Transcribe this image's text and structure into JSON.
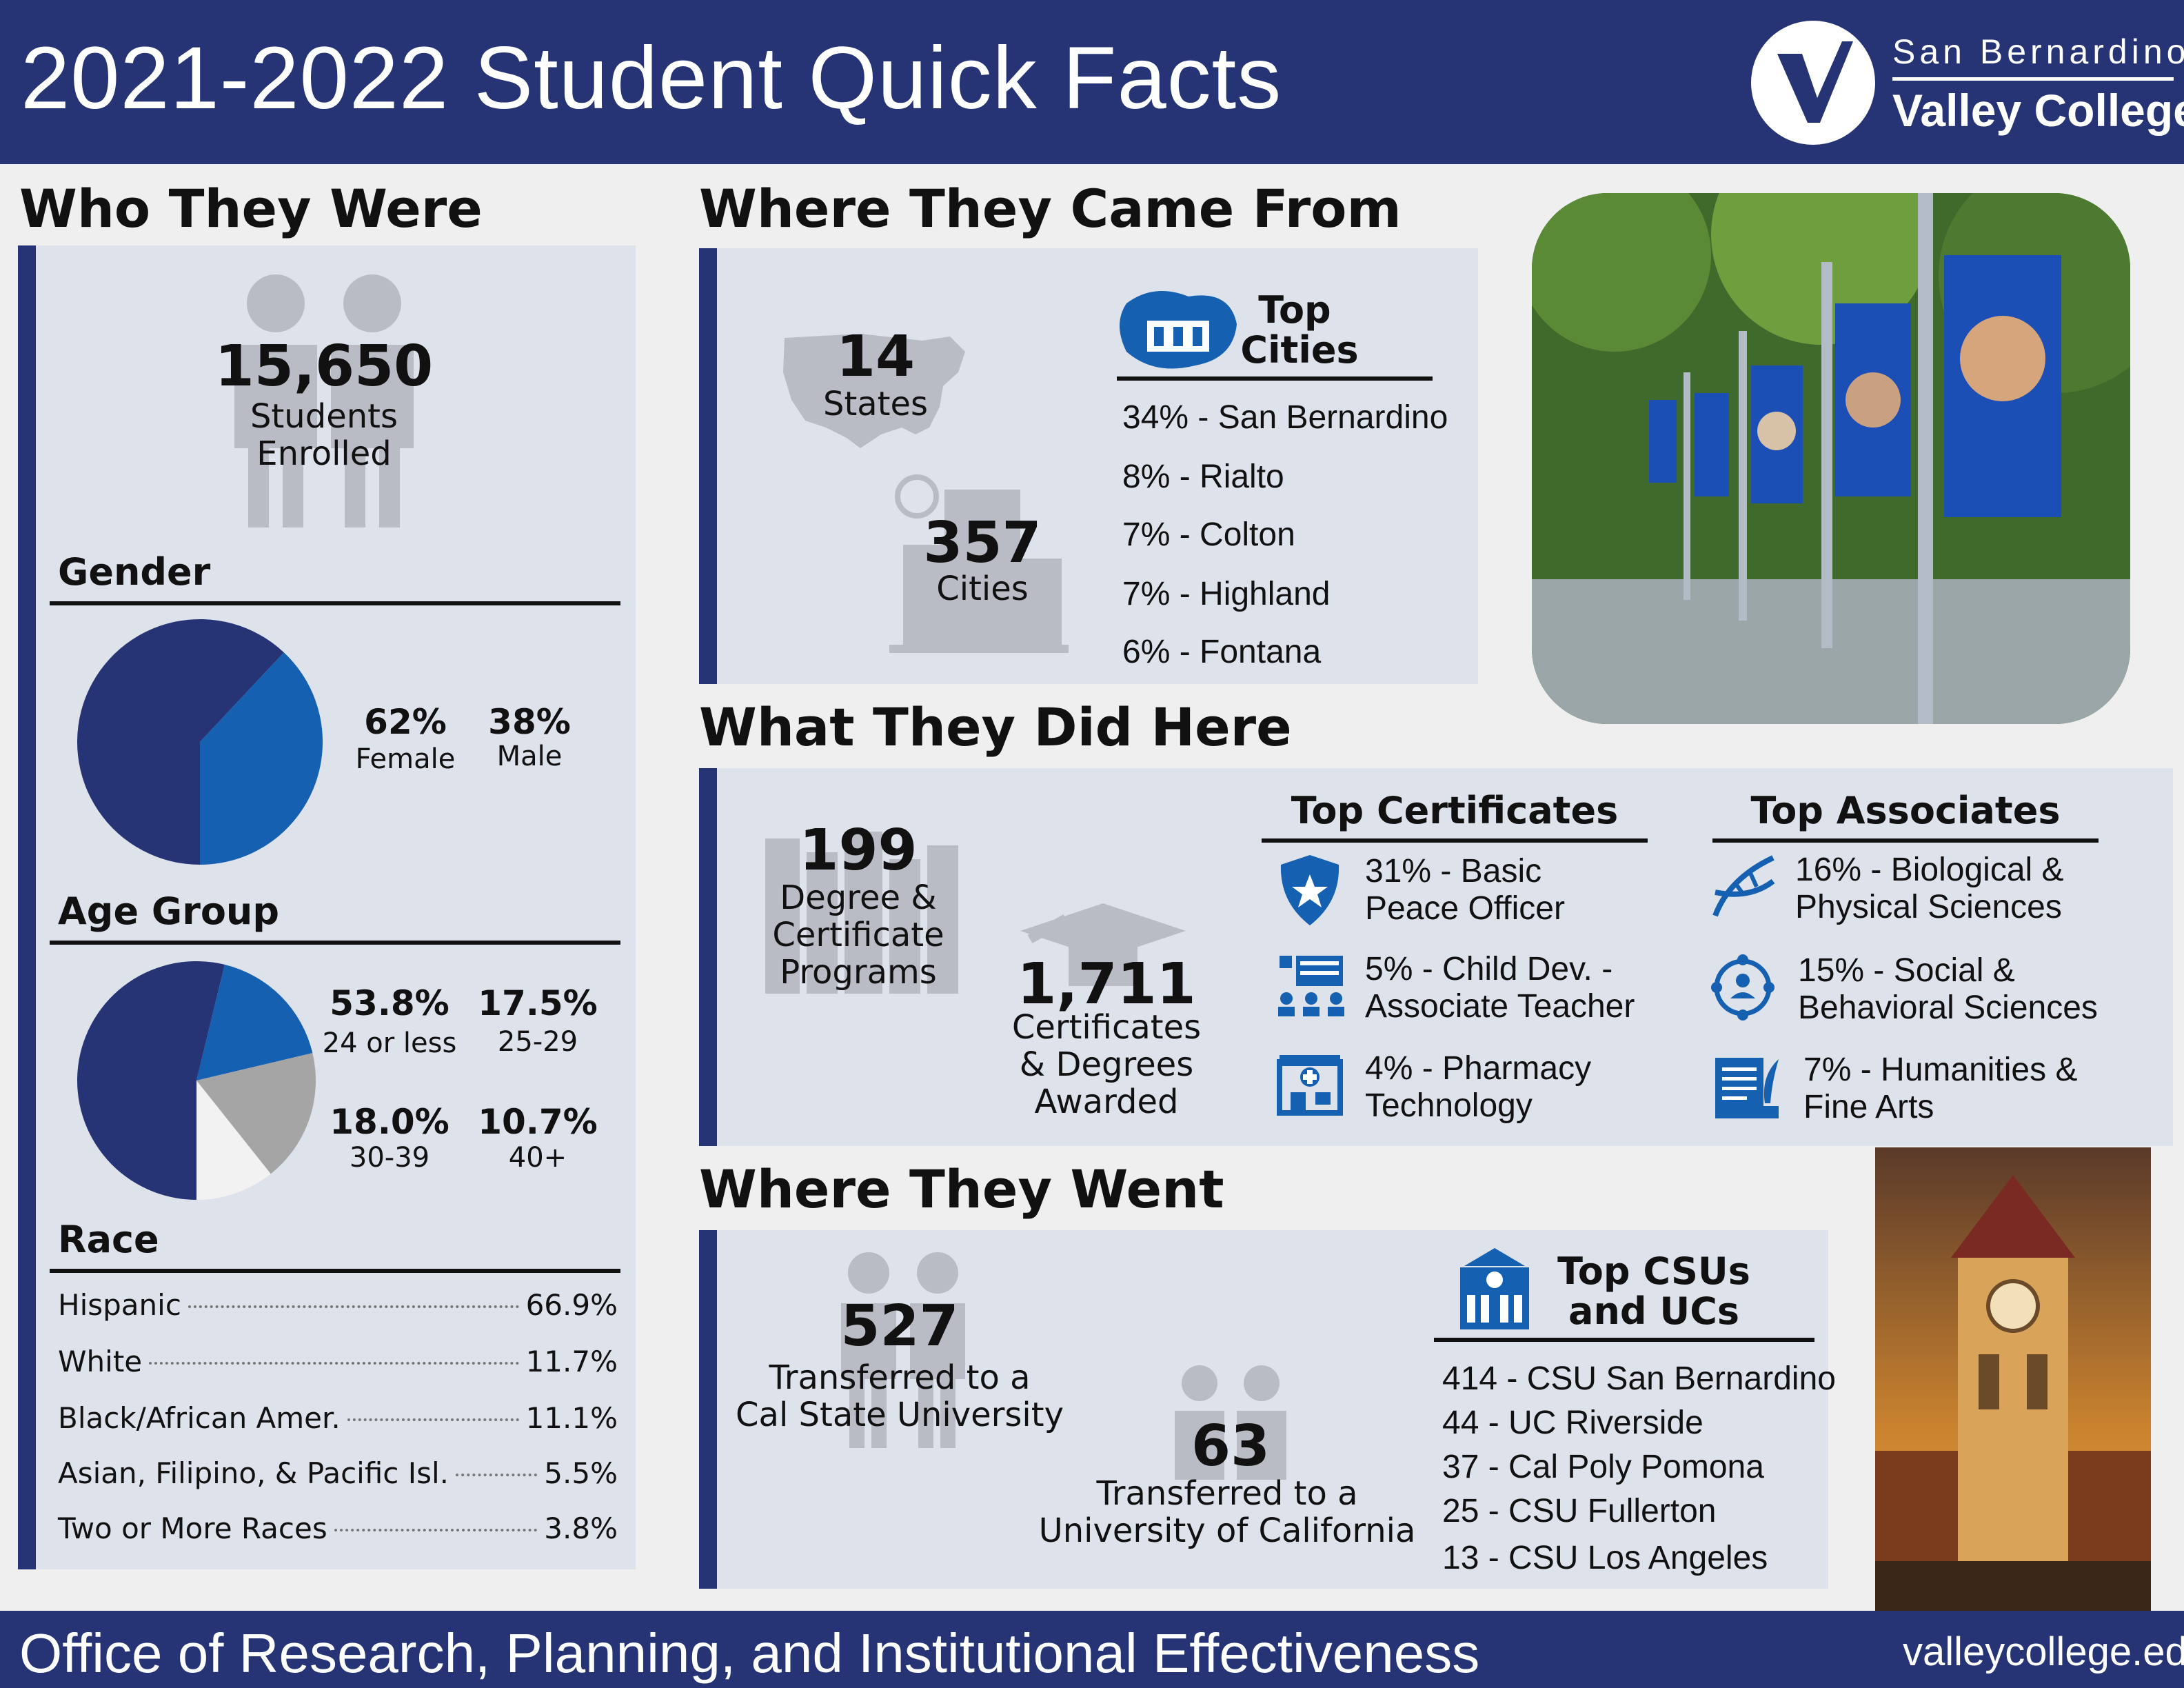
{
  "header": {
    "title": "2021-2022 Student Quick Facts",
    "logo_line1": "San Bernardino",
    "logo_line2": "Valley College"
  },
  "who": {
    "title": "Who They Were",
    "enrolled_value": "15,650",
    "enrolled_label1": "Students",
    "enrolled_label2": "Enrolled",
    "gender": {
      "title": "Gender",
      "female_pct": "62%",
      "female_label": "Female",
      "male_pct": "38%",
      "male_label": "Male"
    },
    "age": {
      "title": "Age Group",
      "g1_pct": "53.8%",
      "g1_label": "24 or less",
      "g2_pct": "17.5%",
      "g2_label": "25-29",
      "g3_pct": "18.0%",
      "g3_label": "30-39",
      "g4_pct": "10.7%",
      "g4_label": "40+"
    },
    "race": {
      "title": "Race",
      "rows": [
        {
          "label": "Hispanic",
          "value": "66.9%"
        },
        {
          "label": "White",
          "value": "11.7%"
        },
        {
          "label": "Black/African Amer.",
          "value": "11.1%"
        },
        {
          "label": "Asian, Filipino, & Pacific Isl.",
          "value": "5.5%"
        },
        {
          "label": "Two or More Races",
          "value": "3.8%"
        }
      ]
    }
  },
  "from": {
    "title": "Where They Came From",
    "states_value": "14",
    "states_label": "States",
    "cities_value": "357",
    "cities_label": "Cities",
    "top_cities_title1": "Top",
    "top_cities_title2": "Cities",
    "cities": [
      "34% - San Bernardino",
      "8% - Rialto",
      "7% - Colton",
      "7% - Highland",
      "6% - Fontana"
    ]
  },
  "did": {
    "title": "What They Did Here",
    "programs_value": "199",
    "programs_label1": "Degree &",
    "programs_label2": "Certificate",
    "programs_label3": "Programs",
    "awards_value": "1,711",
    "awards_label1": "Certificates",
    "awards_label2": "& Degrees",
    "awards_label3": "Awarded",
    "certs_title": "Top Certificates",
    "certs": [
      {
        "line1": "31% - Basic",
        "line2": "Peace Officer",
        "icon": "police-badge-icon"
      },
      {
        "line1": "5% - Child Dev. -",
        "line2": "Associate Teacher",
        "icon": "classroom-icon"
      },
      {
        "line1": "4% - Pharmacy",
        "line2": "Technology",
        "icon": "pharmacy-icon"
      }
    ],
    "assoc_title": "Top Associates",
    "assocs": [
      {
        "line1": "16% - Biological &",
        "line2": "Physical Sciences",
        "icon": "dna-icon"
      },
      {
        "line1": "15% - Social &",
        "line2": "Behavioral Sciences",
        "icon": "people-network-icon"
      },
      {
        "line1": "7% - Humanities &",
        "line2": "Fine Arts",
        "icon": "quill-document-icon"
      }
    ]
  },
  "went": {
    "title": "Where They Went",
    "csu_value": "527",
    "csu_label1": "Transferred to a",
    "csu_label2": "Cal State University",
    "uc_value": "63",
    "uc_label1": "Transferred to a",
    "uc_label2": "University of California",
    "top_title1": "Top CSUs",
    "top_title2": "and UCs",
    "schools": [
      "414 - CSU San Bernardino",
      "44 - UC Riverside",
      "37 - Cal Poly Pomona",
      "25 - CSU Fullerton",
      "13 - CSU Los Angeles"
    ]
  },
  "footer": {
    "office": "Office of Research, Planning, and Institutional Effectiveness",
    "url": "valleycollege.edu"
  },
  "colors": {
    "navy": "#263476",
    "blue": "#1560b0",
    "gray": "#a5a5a5",
    "light": "#f2f2f2",
    "panel": "#dde2eb"
  },
  "chart_data": [
    {
      "type": "pie",
      "categories": [
        "Female",
        "Male"
      ],
      "values": [
        62,
        38
      ]
    },
    {
      "type": "pie",
      "categories": [
        "24 or less",
        "25-29",
        "30-39",
        "40+"
      ],
      "values": [
        53.8,
        17.5,
        18.0,
        10.7
      ]
    }
  ]
}
